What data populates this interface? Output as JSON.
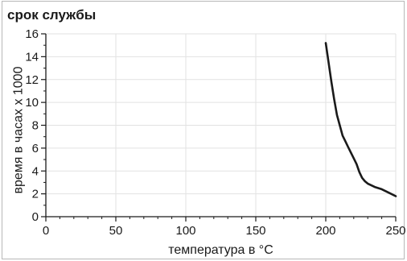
{
  "chart_data": {
    "type": "line",
    "title": "срок службы",
    "xlabel": "температура в °C",
    "ylabel": "время в часах x 1000",
    "xlim": [
      0,
      250
    ],
    "ylim": [
      0,
      16
    ],
    "xticks": [
      0,
      50,
      100,
      150,
      200,
      250
    ],
    "yticks": [
      0,
      2,
      4,
      6,
      8,
      10,
      12,
      14,
      16
    ],
    "x_tick_labels": [
      "0",
      "50",
      "100",
      "150",
      "200",
      "250"
    ],
    "y_tick_labels": [
      "0",
      "2",
      "4",
      "6",
      "8",
      "10",
      "12",
      "14",
      "16"
    ],
    "grid": true,
    "series": [
      {
        "color": "#1a1a1a",
        "x": [
          200,
          202,
          204,
          206,
          208,
          210,
          212,
          214,
          216,
          218,
          220,
          222,
          224,
          226,
          228,
          230,
          235,
          240,
          245,
          250
        ],
        "y": [
          15.2,
          13.5,
          11.8,
          10.3,
          8.9,
          8.0,
          7.1,
          6.6,
          6.1,
          5.6,
          5.1,
          4.6,
          3.9,
          3.4,
          3.1,
          2.9,
          2.6,
          2.4,
          2.1,
          1.8
        ]
      }
    ]
  }
}
